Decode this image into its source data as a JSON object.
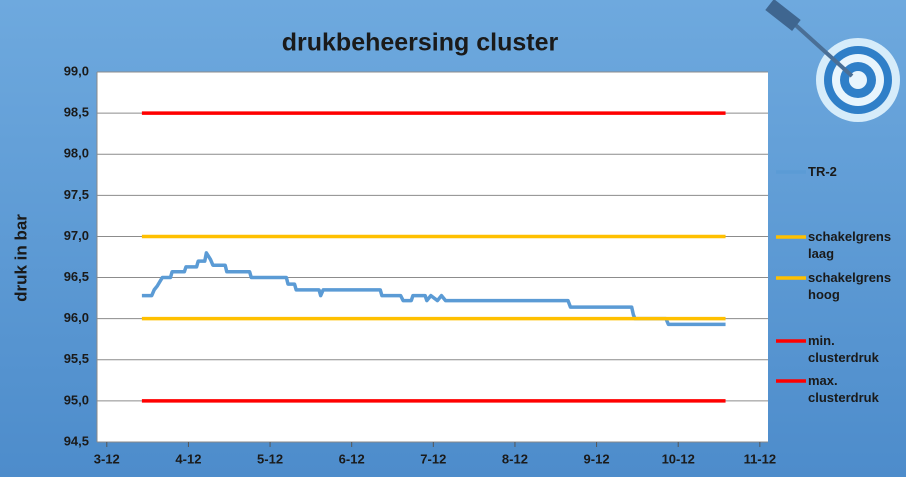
{
  "chart_data": {
    "type": "line",
    "title": "drukbeheersing cluster",
    "y_label": "druk in bar",
    "xlim": [
      2.88,
      11.1
    ],
    "xticks": [
      {
        "value": 3,
        "label": "3-12"
      },
      {
        "value": 4,
        "label": "4-12"
      },
      {
        "value": 5,
        "label": "5-12"
      },
      {
        "value": 6,
        "label": "6-12"
      },
      {
        "value": 7,
        "label": "7-12"
      },
      {
        "value": 8,
        "label": "8-12"
      },
      {
        "value": 9,
        "label": "9-12"
      },
      {
        "value": 10,
        "label": "10-12"
      },
      {
        "value": 11,
        "label": "11-12"
      }
    ],
    "ylim": [
      94.5,
      99.0
    ],
    "yticks": [
      {
        "value": 94.5,
        "label": "94,5"
      },
      {
        "value": 95,
        "label": "95,0"
      },
      {
        "value": 95.5,
        "label": "95,5"
      },
      {
        "value": 96,
        "label": "96,0"
      },
      {
        "value": 96.5,
        "label": "96,5"
      },
      {
        "value": 97,
        "label": "97,0"
      },
      {
        "value": 97.5,
        "label": "97,5"
      },
      {
        "value": 98,
        "label": "98,0"
      },
      {
        "value": 98.5,
        "label": "98,5"
      },
      {
        "value": 99,
        "label": "99,0"
      }
    ],
    "grid": true,
    "legend": "right",
    "series": [
      {
        "name": "TR-2",
        "color": "#5b9bd5",
        "x": [
          3.43,
          3.55,
          3.58,
          3.62,
          3.65,
          3.68,
          3.78,
          3.8,
          3.95,
          3.97,
          4.1,
          4.12,
          4.2,
          4.22,
          4.27,
          4.3,
          4.45,
          4.47,
          4.75,
          4.77,
          5.2,
          5.22,
          5.3,
          5.32,
          5.6,
          5.62,
          5.65,
          6.35,
          6.37,
          6.6,
          6.63,
          6.73,
          6.75,
          6.9,
          6.92,
          6.97,
          7.05,
          7.1,
          7.15,
          8.65,
          8.68,
          9.43,
          9.45,
          9.47,
          9.85,
          9.88,
          10.58
        ],
        "values": [
          96.28,
          96.28,
          96.35,
          96.4,
          96.45,
          96.5,
          96.5,
          96.57,
          96.57,
          96.63,
          96.63,
          96.7,
          96.7,
          96.8,
          96.72,
          96.65,
          96.65,
          96.57,
          96.57,
          96.5,
          96.5,
          96.42,
          96.42,
          96.35,
          96.35,
          96.28,
          96.35,
          96.35,
          96.28,
          96.28,
          96.22,
          96.22,
          96.28,
          96.28,
          96.22,
          96.28,
          96.22,
          96.28,
          96.22,
          96.22,
          96.14,
          96.14,
          96.05,
          96.0,
          96.0,
          95.93,
          95.93
        ]
      },
      {
        "name": "schakelgrens laag",
        "color": "#ffc000",
        "x": [
          3.43,
          10.58
        ],
        "values": [
          96.0,
          96.0
        ]
      },
      {
        "name": "schakelgrens hoog",
        "color": "#ffc000",
        "x": [
          3.43,
          10.58
        ],
        "values": [
          97.0,
          97.0
        ]
      },
      {
        "name": "min. clusterdruk",
        "color": "#ff0000",
        "x": [
          3.43,
          10.58
        ],
        "values": [
          95.0,
          95.0
        ]
      },
      {
        "name": "max. clusterdruk",
        "color": "#ff0000",
        "x": [
          3.43,
          10.58
        ],
        "values": [
          98.5,
          98.5
        ]
      }
    ]
  }
}
